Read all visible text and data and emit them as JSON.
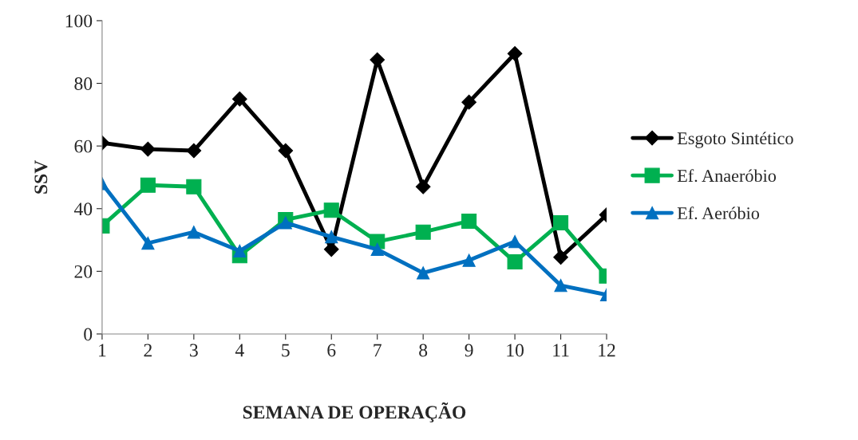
{
  "chart_data": {
    "type": "line",
    "xlabel": "SEMANA DE OPERAÇÃO",
    "ylabel": "SSV",
    "categories": [
      "1",
      "2",
      "3",
      "4",
      "5",
      "6",
      "7",
      "8",
      "9",
      "10",
      "11",
      "12"
    ],
    "series": [
      {
        "name": "Esgoto Sintético",
        "color": "#000000",
        "marker": "diamond",
        "values": [
          61,
          59,
          58.5,
          75,
          58.5,
          27,
          87.5,
          47,
          74,
          89.5,
          24.5,
          38
        ]
      },
      {
        "name": "Ef. Anaeróbio",
        "color": "#00b050",
        "marker": "square",
        "values": [
          34.5,
          47.5,
          47,
          25,
          36.5,
          39.5,
          29.5,
          32.5,
          36,
          23,
          35.5,
          18.5
        ]
      },
      {
        "name": "Ef. Aeróbio",
        "color": "#0070c0",
        "marker": "triangle",
        "values": [
          48,
          29,
          32.5,
          26.5,
          35.5,
          31,
          27,
          19.5,
          23.5,
          29.5,
          15.5,
          12.5
        ]
      }
    ],
    "ylim": [
      0,
      100
    ],
    "yticks": [
      0,
      20,
      40,
      60,
      80,
      100
    ],
    "grid": false,
    "legend": "right",
    "line_style": "solid"
  }
}
